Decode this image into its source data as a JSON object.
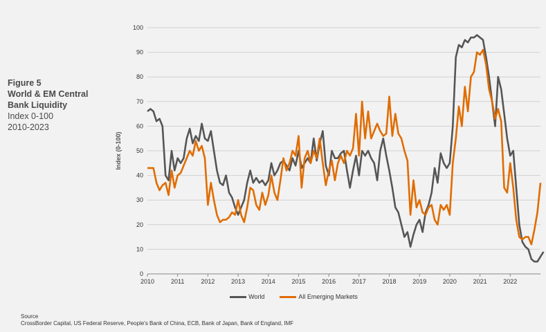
{
  "figure": {
    "number": "Figure 5",
    "title_line1": "World & EM Central",
    "title_line2": "Bank Liquidity",
    "subtitle_line1": "Index 0-100",
    "subtitle_line2": "2010-2023"
  },
  "source": {
    "label": "Source",
    "text": "CrossBorder Capital, US Federal Reserve, People's Bank of China, ECB, Bank of Japan, Bank of England, IMF"
  },
  "colors": {
    "world": "#555555",
    "em": "#e06c00",
    "grid": "#d0d0d0"
  },
  "chart_data": {
    "type": "line",
    "ylabel": "Index (0-100)",
    "xlabel": "",
    "xlim": [
      2010,
      2023
    ],
    "ylim": [
      0,
      100
    ],
    "y_ticks": [
      0,
      10,
      20,
      30,
      40,
      50,
      60,
      70,
      80,
      90,
      100
    ],
    "x_ticks": [
      2010,
      2011,
      2012,
      2013,
      2014,
      2015,
      2016,
      2017,
      2018,
      2019,
      2020,
      2021,
      2022
    ],
    "grid": true,
    "legend_position": "bottom",
    "series": [
      {
        "name": "World",
        "key": "world",
        "points": [
          [
            2010.0,
            66
          ],
          [
            2010.1,
            67
          ],
          [
            2010.2,
            66
          ],
          [
            2010.3,
            62
          ],
          [
            2010.4,
            63
          ],
          [
            2010.5,
            60
          ],
          [
            2010.6,
            40
          ],
          [
            2010.7,
            38
          ],
          [
            2010.8,
            50
          ],
          [
            2010.9,
            42
          ],
          [
            2011.0,
            47
          ],
          [
            2011.1,
            45
          ],
          [
            2011.2,
            47
          ],
          [
            2011.3,
            55
          ],
          [
            2011.4,
            59
          ],
          [
            2011.5,
            53
          ],
          [
            2011.6,
            56
          ],
          [
            2011.7,
            54
          ],
          [
            2011.8,
            61
          ],
          [
            2011.9,
            55
          ],
          [
            2012.0,
            54
          ],
          [
            2012.1,
            58
          ],
          [
            2012.2,
            50
          ],
          [
            2012.3,
            42
          ],
          [
            2012.4,
            37
          ],
          [
            2012.5,
            36
          ],
          [
            2012.6,
            40
          ],
          [
            2012.7,
            33
          ],
          [
            2012.8,
            31
          ],
          [
            2012.9,
            27
          ],
          [
            2013.0,
            24
          ],
          [
            2013.1,
            27
          ],
          [
            2013.2,
            30
          ],
          [
            2013.3,
            37
          ],
          [
            2013.4,
            42
          ],
          [
            2013.5,
            37
          ],
          [
            2013.6,
            39
          ],
          [
            2013.7,
            37
          ],
          [
            2013.8,
            38
          ],
          [
            2013.9,
            36
          ],
          [
            2014.0,
            38
          ],
          [
            2014.1,
            45
          ],
          [
            2014.2,
            40
          ],
          [
            2014.3,
            42
          ],
          [
            2014.4,
            45
          ],
          [
            2014.5,
            46
          ],
          [
            2014.6,
            44
          ],
          [
            2014.7,
            42
          ],
          [
            2014.8,
            47
          ],
          [
            2014.9,
            44
          ],
          [
            2015.0,
            50
          ],
          [
            2015.1,
            43
          ],
          [
            2015.2,
            45
          ],
          [
            2015.3,
            47
          ],
          [
            2015.4,
            45
          ],
          [
            2015.5,
            55
          ],
          [
            2015.6,
            46
          ],
          [
            2015.7,
            53
          ],
          [
            2015.8,
            58
          ],
          [
            2015.9,
            44
          ],
          [
            2016.0,
            40
          ],
          [
            2016.1,
            50
          ],
          [
            2016.2,
            47
          ],
          [
            2016.3,
            47
          ],
          [
            2016.4,
            49
          ],
          [
            2016.5,
            50
          ],
          [
            2016.6,
            42
          ],
          [
            2016.7,
            35
          ],
          [
            2016.8,
            42
          ],
          [
            2016.9,
            48
          ],
          [
            2017.0,
            40
          ],
          [
            2017.1,
            50
          ],
          [
            2017.2,
            48
          ],
          [
            2017.3,
            50
          ],
          [
            2017.4,
            47
          ],
          [
            2017.5,
            45
          ],
          [
            2017.6,
            38
          ],
          [
            2017.7,
            50
          ],
          [
            2017.8,
            55
          ],
          [
            2017.9,
            48
          ],
          [
            2018.0,
            42
          ],
          [
            2018.1,
            35
          ],
          [
            2018.2,
            27
          ],
          [
            2018.3,
            25
          ],
          [
            2018.4,
            20
          ],
          [
            2018.5,
            15
          ],
          [
            2018.6,
            17
          ],
          [
            2018.7,
            11
          ],
          [
            2018.8,
            16
          ],
          [
            2018.9,
            20
          ],
          [
            2019.0,
            22
          ],
          [
            2019.1,
            17
          ],
          [
            2019.2,
            25
          ],
          [
            2019.3,
            28
          ],
          [
            2019.4,
            33
          ],
          [
            2019.5,
            43
          ],
          [
            2019.6,
            37
          ],
          [
            2019.7,
            49
          ],
          [
            2019.8,
            45
          ],
          [
            2019.9,
            43
          ],
          [
            2020.0,
            45
          ],
          [
            2020.1,
            60
          ],
          [
            2020.2,
            88
          ],
          [
            2020.3,
            93
          ],
          [
            2020.4,
            92
          ],
          [
            2020.5,
            95
          ],
          [
            2020.6,
            94
          ],
          [
            2020.7,
            96
          ],
          [
            2020.8,
            96
          ],
          [
            2020.9,
            97
          ],
          [
            2021.0,
            96
          ],
          [
            2021.1,
            95
          ],
          [
            2021.2,
            88
          ],
          [
            2021.3,
            80
          ],
          [
            2021.4,
            70
          ],
          [
            2021.5,
            60
          ],
          [
            2021.6,
            80
          ],
          [
            2021.7,
            75
          ],
          [
            2021.8,
            65
          ],
          [
            2021.9,
            55
          ],
          [
            2022.0,
            48
          ],
          [
            2022.1,
            50
          ],
          [
            2022.2,
            35
          ],
          [
            2022.3,
            20
          ],
          [
            2022.4,
            13
          ],
          [
            2022.5,
            11
          ],
          [
            2022.6,
            10
          ],
          [
            2022.7,
            6
          ],
          [
            2022.8,
            5
          ],
          [
            2022.9,
            5
          ],
          [
            2023.0,
            7
          ],
          [
            2023.1,
            9
          ]
        ]
      },
      {
        "name": "All Emerging Markets",
        "key": "em",
        "points": [
          [
            2010.0,
            43
          ],
          [
            2010.1,
            43
          ],
          [
            2010.2,
            43
          ],
          [
            2010.3,
            37
          ],
          [
            2010.4,
            34
          ],
          [
            2010.5,
            36
          ],
          [
            2010.6,
            37
          ],
          [
            2010.7,
            32
          ],
          [
            2010.8,
            42
          ],
          [
            2010.9,
            35
          ],
          [
            2011.0,
            40
          ],
          [
            2011.1,
            41
          ],
          [
            2011.2,
            44
          ],
          [
            2011.3,
            47
          ],
          [
            2011.4,
            50
          ],
          [
            2011.5,
            48
          ],
          [
            2011.6,
            54
          ],
          [
            2011.7,
            50
          ],
          [
            2011.8,
            52
          ],
          [
            2011.9,
            47
          ],
          [
            2012.0,
            28
          ],
          [
            2012.1,
            37
          ],
          [
            2012.2,
            30
          ],
          [
            2012.3,
            24
          ],
          [
            2012.4,
            21
          ],
          [
            2012.5,
            22
          ],
          [
            2012.6,
            22
          ],
          [
            2012.7,
            23
          ],
          [
            2012.8,
            25
          ],
          [
            2012.9,
            24
          ],
          [
            2013.0,
            30
          ],
          [
            2013.1,
            24
          ],
          [
            2013.2,
            21
          ],
          [
            2013.3,
            27
          ],
          [
            2013.4,
            35
          ],
          [
            2013.5,
            34
          ],
          [
            2013.6,
            28
          ],
          [
            2013.7,
            26
          ],
          [
            2013.8,
            33
          ],
          [
            2013.9,
            28
          ],
          [
            2014.0,
            32
          ],
          [
            2014.1,
            40
          ],
          [
            2014.2,
            33
          ],
          [
            2014.3,
            30
          ],
          [
            2014.4,
            38
          ],
          [
            2014.5,
            47
          ],
          [
            2014.6,
            42
          ],
          [
            2014.7,
            45
          ],
          [
            2014.8,
            50
          ],
          [
            2014.9,
            48
          ],
          [
            2015.0,
            56
          ],
          [
            2015.1,
            35
          ],
          [
            2015.2,
            47
          ],
          [
            2015.3,
            50
          ],
          [
            2015.4,
            45
          ],
          [
            2015.5,
            50
          ],
          [
            2015.6,
            47
          ],
          [
            2015.7,
            55
          ],
          [
            2015.8,
            45
          ],
          [
            2015.9,
            36
          ],
          [
            2016.0,
            42
          ],
          [
            2016.1,
            46
          ],
          [
            2016.2,
            38
          ],
          [
            2016.3,
            45
          ],
          [
            2016.4,
            48
          ],
          [
            2016.5,
            45
          ],
          [
            2016.6,
            50
          ],
          [
            2016.7,
            48
          ],
          [
            2016.8,
            51
          ],
          [
            2016.9,
            65
          ],
          [
            2017.0,
            48
          ],
          [
            2017.1,
            70
          ],
          [
            2017.2,
            55
          ],
          [
            2017.3,
            66
          ],
          [
            2017.4,
            55
          ],
          [
            2017.5,
            58
          ],
          [
            2017.6,
            61
          ],
          [
            2017.7,
            58
          ],
          [
            2017.8,
            56
          ],
          [
            2017.9,
            57
          ],
          [
            2018.0,
            72
          ],
          [
            2018.1,
            56
          ],
          [
            2018.2,
            65
          ],
          [
            2018.3,
            57
          ],
          [
            2018.4,
            55
          ],
          [
            2018.5,
            50
          ],
          [
            2018.6,
            46
          ],
          [
            2018.7,
            24
          ],
          [
            2018.8,
            38
          ],
          [
            2018.9,
            27
          ],
          [
            2019.0,
            30
          ],
          [
            2019.1,
            25
          ],
          [
            2019.2,
            24
          ],
          [
            2019.3,
            27
          ],
          [
            2019.4,
            28
          ],
          [
            2019.5,
            22
          ],
          [
            2019.6,
            20
          ],
          [
            2019.7,
            28
          ],
          [
            2019.8,
            26
          ],
          [
            2019.9,
            28
          ],
          [
            2020.0,
            24
          ],
          [
            2020.1,
            45
          ],
          [
            2020.2,
            55
          ],
          [
            2020.3,
            68
          ],
          [
            2020.4,
            60
          ],
          [
            2020.5,
            76
          ],
          [
            2020.6,
            66
          ],
          [
            2020.7,
            80
          ],
          [
            2020.8,
            82
          ],
          [
            2020.9,
            90
          ],
          [
            2021.0,
            89
          ],
          [
            2021.1,
            91
          ],
          [
            2021.2,
            85
          ],
          [
            2021.3,
            75
          ],
          [
            2021.4,
            70
          ],
          [
            2021.5,
            63
          ],
          [
            2021.6,
            67
          ],
          [
            2021.7,
            62
          ],
          [
            2021.8,
            35
          ],
          [
            2021.9,
            33
          ],
          [
            2022.0,
            45
          ],
          [
            2022.1,
            35
          ],
          [
            2022.2,
            22
          ],
          [
            2022.3,
            15
          ],
          [
            2022.4,
            14
          ],
          [
            2022.5,
            15
          ],
          [
            2022.6,
            15
          ],
          [
            2022.7,
            12
          ],
          [
            2022.8,
            18
          ],
          [
            2022.9,
            25
          ],
          [
            2023.0,
            37
          ]
        ]
      }
    ]
  }
}
